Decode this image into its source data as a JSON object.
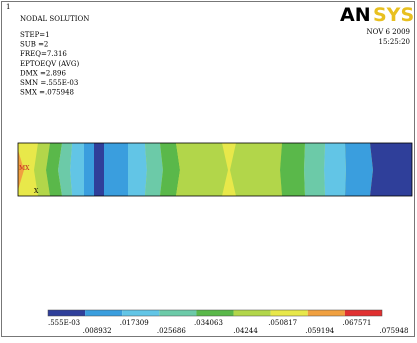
{
  "window_number": "1",
  "info": {
    "title": "NODAL SOLUTION",
    "lines": [
      "STEP=1",
      "SUB =2",
      "FREQ=7.316",
      "EPTOEQV  (AVG)",
      "DMX =2.896",
      "SMN =.555E-03",
      "SMX =.075948"
    ]
  },
  "logo": {
    "main": "AN",
    "accent": "SYS"
  },
  "date": "NOV  6 2009",
  "time": "15:25:20",
  "markers": {
    "max": "MX",
    "axis": "X"
  },
  "legend": {
    "colors": [
      "#2f3f9a",
      "#3a9ede",
      "#62c5e6",
      "#6ccaa8",
      "#5ab84a",
      "#b2d64a",
      "#e8e84a",
      "#f0a040",
      "#e03030"
    ],
    "labels": [
      ".555E-03",
      ".008932",
      ".017309",
      ".025686",
      ".034063",
      ".04244",
      ".050817",
      ".059194",
      ".067571",
      ".075948"
    ]
  }
}
